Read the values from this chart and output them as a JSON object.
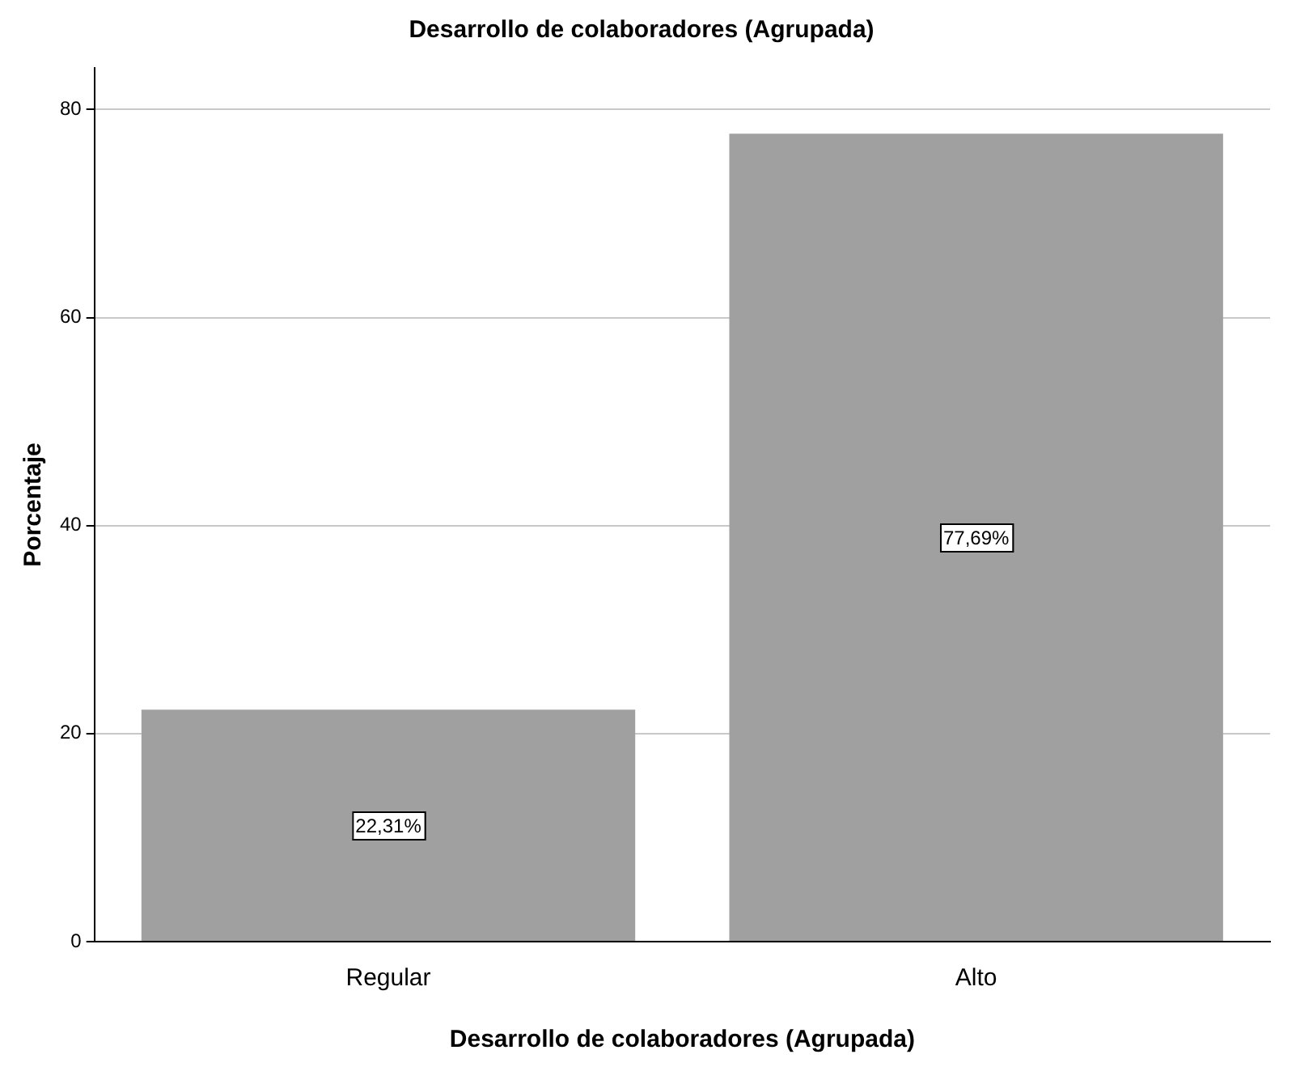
{
  "chart_data": {
    "type": "bar",
    "title": "Desarrollo de colaboradores (Agrupada)",
    "xlabel": "Desarrollo de colaboradores (Agrupada)",
    "ylabel": "Porcentaje",
    "categories": [
      "Regular",
      "Alto"
    ],
    "values": [
      22.31,
      77.69
    ],
    "color": "#a0a0a0",
    "value_labels": [
      "22,31%",
      "77,69%"
    ],
    "ylim": [
      0,
      84
    ],
    "yticks": [
      0,
      20,
      40,
      60,
      80
    ],
    "grid": "y",
    "legend": false
  }
}
